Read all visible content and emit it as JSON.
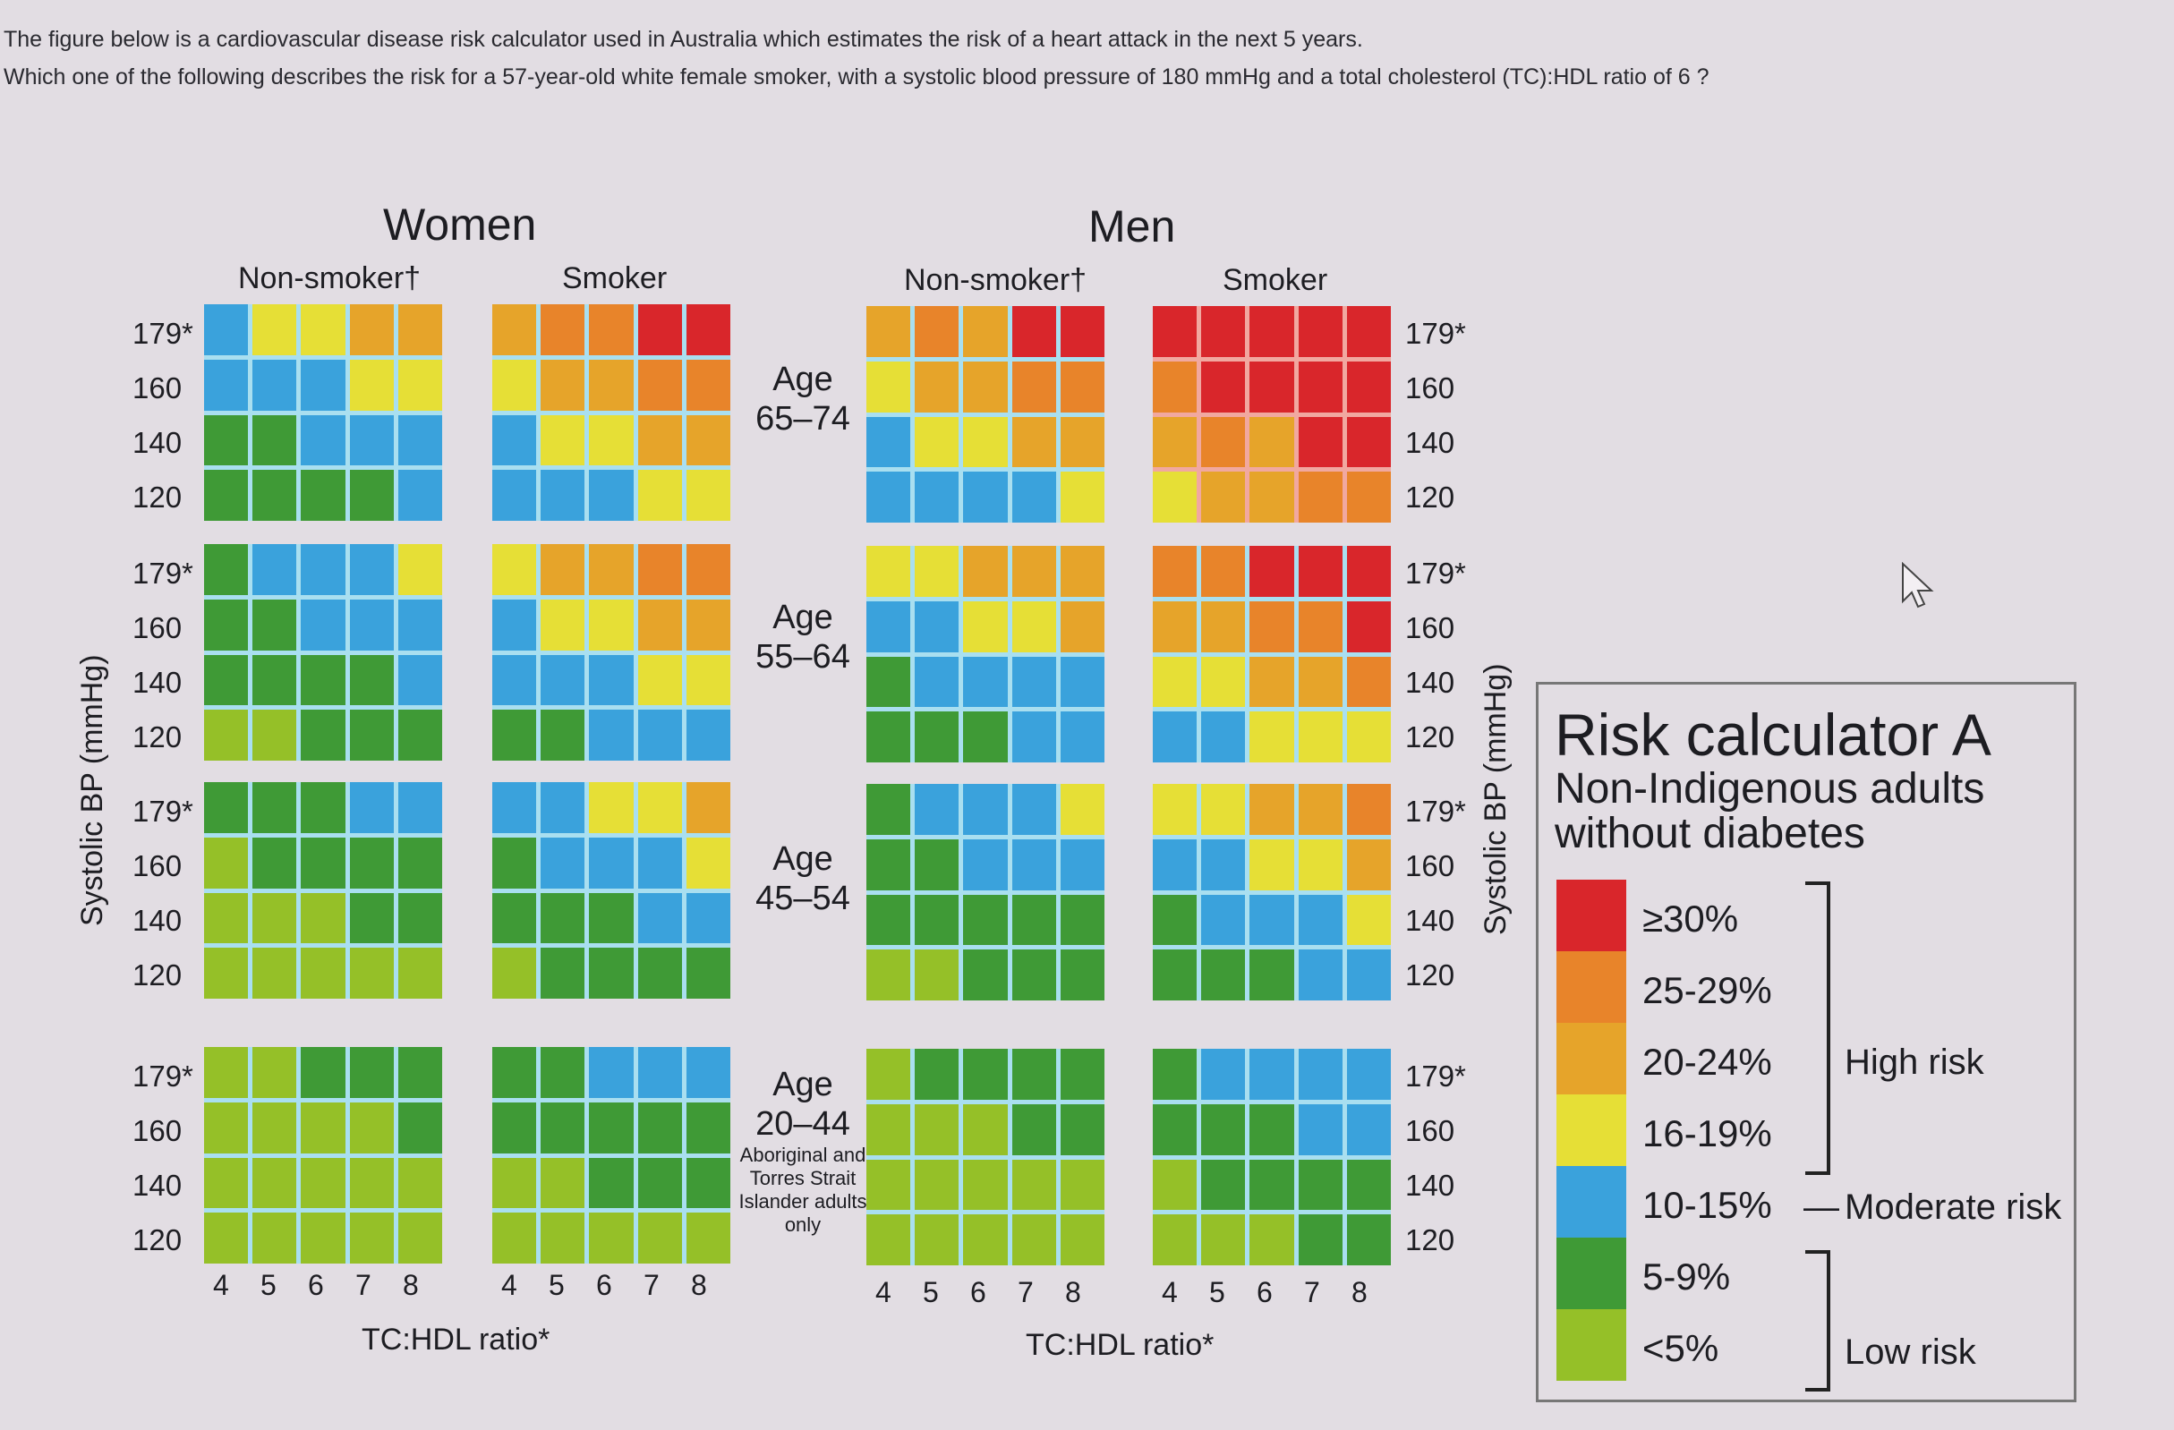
{
  "question": {
    "line1": "The figure below is a cardiovascular disease risk calculator used in Australia which estimates the risk of a heart attack in the next 5 years.",
    "line2": "Which one of the following describes the risk for a 57-year-old white female smoker, with a systolic blood pressure of 180 mmHg and a total cholesterol (TC):HDL ratio of 6 ?"
  },
  "chart_data": {
    "type": "heatmap",
    "title": "Risk calculator A",
    "subtitle": "Non-Indigenous adults without diabetes",
    "xlabel": "TC:HDL ratio*",
    "ylabel": "Systolic BP (mmHg)",
    "x_ticks": [
      "4",
      "5",
      "6",
      "7",
      "8"
    ],
    "y_ticks": [
      "179*",
      "160",
      "140",
      "120"
    ],
    "sexes": [
      "Women",
      "Men"
    ],
    "smoking": [
      "Non-smoker†",
      "Smoker"
    ],
    "age_groups": [
      {
        "label": "Age",
        "range": "65–74",
        "note": ""
      },
      {
        "label": "Age",
        "range": "55–64",
        "note": ""
      },
      {
        "label": "Age",
        "range": "45–54",
        "note": ""
      },
      {
        "label": "Age",
        "range": "20–44",
        "note": "Aboriginal and Torres Strait Islander adults only"
      }
    ],
    "categories": {
      "R": {
        "label": "≥30%",
        "color": "#d9262b"
      },
      "O": {
        "label": "25-29%",
        "color": "#e8842a"
      },
      "A": {
        "label": "20-24%",
        "color": "#e6a42a"
      },
      "Y": {
        "label": "16-19%",
        "color": "#e6df36"
      },
      "B": {
        "label": "10-15%",
        "color": "#3aa2dc"
      },
      "G": {
        "label": "5-9%",
        "color": "#3f9a36"
      },
      "L": {
        "label": "<5%",
        "color": "#95c028"
      }
    },
    "grids": {
      "women_nonsmoker": [
        [
          [
            "B",
            "Y",
            "Y",
            "A",
            "A"
          ],
          [
            "B",
            "B",
            "B",
            "Y",
            "Y"
          ],
          [
            "G",
            "G",
            "B",
            "B",
            "B"
          ],
          [
            "G",
            "G",
            "G",
            "G",
            "B"
          ]
        ],
        [
          [
            "G",
            "B",
            "B",
            "B",
            "Y"
          ],
          [
            "G",
            "G",
            "B",
            "B",
            "B"
          ],
          [
            "G",
            "G",
            "G",
            "G",
            "B"
          ],
          [
            "L",
            "L",
            "G",
            "G",
            "G"
          ]
        ],
        [
          [
            "G",
            "G",
            "G",
            "B",
            "B"
          ],
          [
            "L",
            "G",
            "G",
            "G",
            "G"
          ],
          [
            "L",
            "L",
            "L",
            "G",
            "G"
          ],
          [
            "L",
            "L",
            "L",
            "L",
            "L"
          ]
        ],
        [
          [
            "L",
            "L",
            "G",
            "G",
            "G"
          ],
          [
            "L",
            "L",
            "L",
            "L",
            "G"
          ],
          [
            "L",
            "L",
            "L",
            "L",
            "L"
          ],
          [
            "L",
            "L",
            "L",
            "L",
            "L"
          ]
        ]
      ],
      "women_smoker": [
        [
          [
            "A",
            "O",
            "O",
            "R",
            "R"
          ],
          [
            "Y",
            "A",
            "A",
            "O",
            "O"
          ],
          [
            "B",
            "Y",
            "Y",
            "A",
            "A"
          ],
          [
            "B",
            "B",
            "B",
            "Y",
            "Y"
          ]
        ],
        [
          [
            "Y",
            "A",
            "A",
            "O",
            "O"
          ],
          [
            "B",
            "Y",
            "Y",
            "A",
            "A"
          ],
          [
            "B",
            "B",
            "B",
            "Y",
            "Y"
          ],
          [
            "G",
            "G",
            "B",
            "B",
            "B"
          ]
        ],
        [
          [
            "B",
            "B",
            "Y",
            "Y",
            "A"
          ],
          [
            "G",
            "B",
            "B",
            "B",
            "Y"
          ],
          [
            "G",
            "G",
            "G",
            "B",
            "B"
          ],
          [
            "L",
            "G",
            "G",
            "G",
            "G"
          ]
        ],
        [
          [
            "G",
            "G",
            "B",
            "B",
            "B"
          ],
          [
            "G",
            "G",
            "G",
            "G",
            "G"
          ],
          [
            "L",
            "L",
            "G",
            "G",
            "G"
          ],
          [
            "L",
            "L",
            "L",
            "L",
            "L"
          ]
        ]
      ],
      "men_nonsmoker": [
        [
          [
            "A",
            "O",
            "A",
            "R",
            "R"
          ],
          [
            "Y",
            "A",
            "A",
            "O",
            "O"
          ],
          [
            "B",
            "Y",
            "Y",
            "A",
            "A"
          ],
          [
            "B",
            "B",
            "B",
            "B",
            "Y"
          ]
        ],
        [
          [
            "Y",
            "Y",
            "A",
            "A",
            "A"
          ],
          [
            "B",
            "B",
            "Y",
            "Y",
            "A"
          ],
          [
            "G",
            "B",
            "B",
            "B",
            "B"
          ],
          [
            "G",
            "G",
            "G",
            "B",
            "B"
          ]
        ],
        [
          [
            "G",
            "B",
            "B",
            "B",
            "Y"
          ],
          [
            "G",
            "G",
            "B",
            "B",
            "B"
          ],
          [
            "G",
            "G",
            "G",
            "G",
            "G"
          ],
          [
            "L",
            "L",
            "G",
            "G",
            "G"
          ]
        ],
        [
          [
            "L",
            "G",
            "G",
            "G",
            "G"
          ],
          [
            "L",
            "L",
            "L",
            "G",
            "G"
          ],
          [
            "L",
            "L",
            "L",
            "L",
            "L"
          ],
          [
            "L",
            "L",
            "L",
            "L",
            "L"
          ]
        ]
      ],
      "men_smoker": [
        [
          [
            "R",
            "R",
            "R",
            "R",
            "R"
          ],
          [
            "O",
            "R",
            "R",
            "R",
            "R"
          ],
          [
            "A",
            "O",
            "A",
            "R",
            "R"
          ],
          [
            "Y",
            "A",
            "A",
            "O",
            "O"
          ]
        ],
        [
          [
            "O",
            "O",
            "R",
            "R",
            "R"
          ],
          [
            "A",
            "A",
            "O",
            "O",
            "R"
          ],
          [
            "Y",
            "Y",
            "A",
            "A",
            "O"
          ],
          [
            "B",
            "B",
            "Y",
            "Y",
            "Y"
          ]
        ],
        [
          [
            "Y",
            "Y",
            "A",
            "A",
            "O"
          ],
          [
            "B",
            "B",
            "Y",
            "Y",
            "A"
          ],
          [
            "G",
            "B",
            "B",
            "B",
            "Y"
          ],
          [
            "G",
            "G",
            "G",
            "B",
            "B"
          ]
        ],
        [
          [
            "G",
            "B",
            "B",
            "B",
            "B"
          ],
          [
            "G",
            "G",
            "G",
            "B",
            "B"
          ],
          [
            "L",
            "G",
            "G",
            "G",
            "G"
          ],
          [
            "L",
            "L",
            "L",
            "G",
            "G"
          ]
        ]
      ]
    },
    "legend": {
      "items": [
        {
          "key": "R",
          "label": "≥30%"
        },
        {
          "key": "O",
          "label": "25-29%"
        },
        {
          "key": "A",
          "label": "20-24%"
        },
        {
          "key": "Y",
          "label": "16-19%"
        },
        {
          "key": "B",
          "label": "10-15%"
        },
        {
          "key": "G",
          "label": "5-9%"
        },
        {
          "key": "L",
          "label": "<5%"
        }
      ],
      "groups": {
        "high": "High risk",
        "moderate": "Moderate risk",
        "low": "Low risk",
        "dash": "—"
      }
    }
  }
}
